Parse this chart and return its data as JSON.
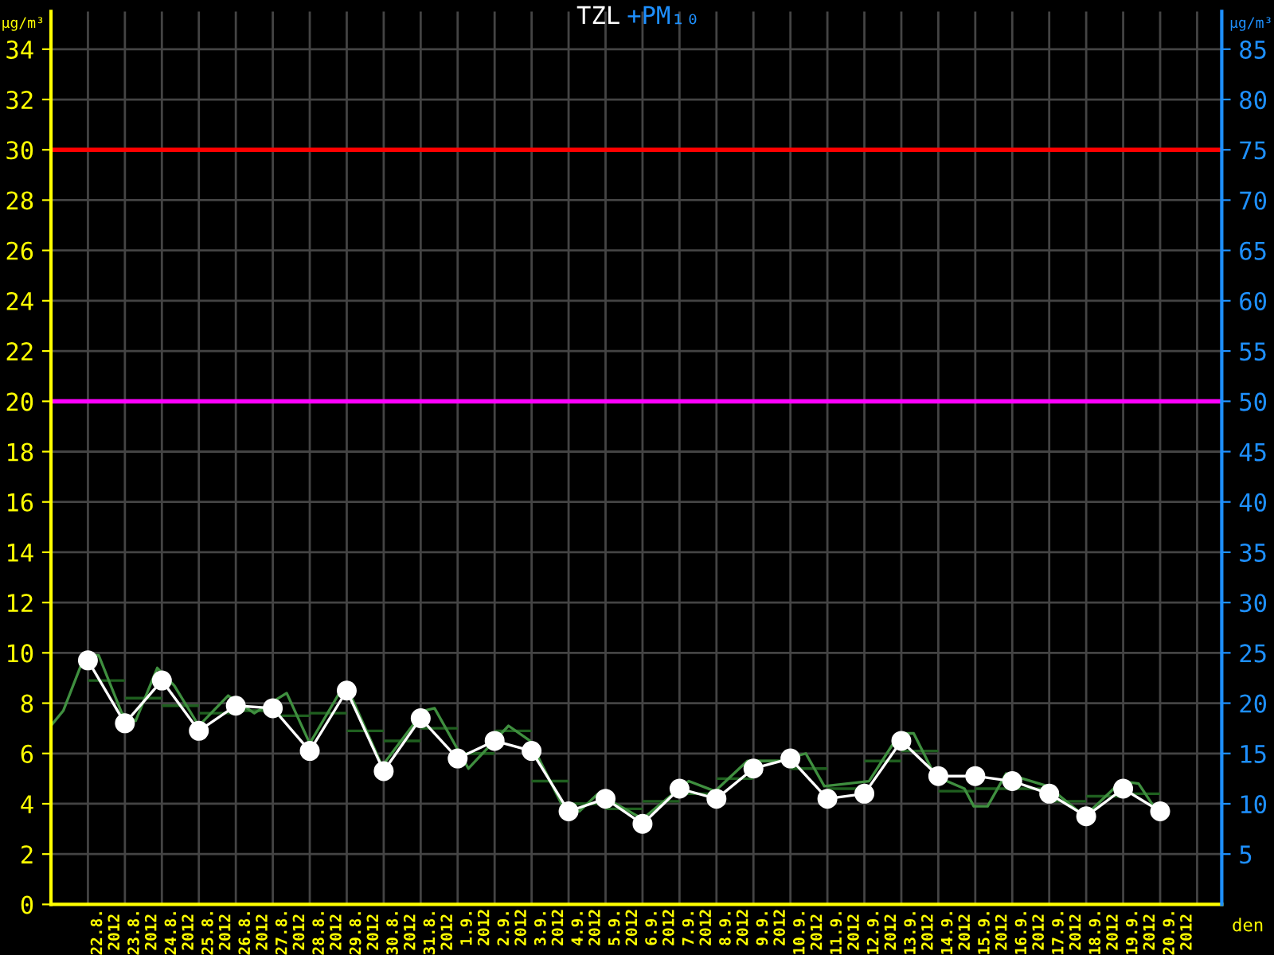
{
  "chart_data": {
    "type": "line",
    "title": "TZL",
    "subtitle": "+PM₁₀",
    "xlabel": "den",
    "ylabel": "µg/m³",
    "y2label": "µg/m³",
    "xlim": [
      "2012-08-21",
      "2012-09-21T16:00"
    ],
    "ylim": [
      0,
      35.5
    ],
    "y2lim": [
      0,
      88.75
    ],
    "yticks": [
      0,
      2,
      4,
      6,
      8,
      10,
      12,
      14,
      16,
      18,
      20,
      22,
      24,
      26,
      28,
      30,
      32,
      34
    ],
    "y2ticks": [
      5,
      10,
      15,
      20,
      25,
      30,
      35,
      40,
      45,
      50,
      55,
      60,
      65,
      70,
      75,
      80,
      85
    ],
    "xticks": [
      {
        "value": "2012-08-22",
        "label": null
      },
      {
        "value": "2012-08-23",
        "label": null
      },
      {
        "value": "2012-08-24",
        "label": null
      },
      {
        "value": "2012-08-25",
        "label": null
      },
      {
        "value": "2012-08-26",
        "label": null
      },
      {
        "value": "2012-08-27",
        "label": null
      },
      {
        "value": "2012-08-28",
        "label": null
      },
      {
        "value": "2012-08-29",
        "label": null
      },
      {
        "value": "2012-08-30",
        "label": null
      },
      {
        "value": "2012-08-31",
        "label": null
      },
      {
        "value": "2012-09-01",
        "label": null
      },
      {
        "value": "2012-09-02",
        "label": null
      },
      {
        "value": "2012-09-03",
        "label": null
      },
      {
        "value": "2012-09-04",
        "label": null
      },
      {
        "value": "2012-09-05",
        "label": null
      },
      {
        "value": "2012-09-06",
        "label": null
      },
      {
        "value": "2012-09-07",
        "label": null
      },
      {
        "value": "2012-09-08",
        "label": null
      },
      {
        "value": "2012-09-09",
        "label": null
      },
      {
        "value": "2012-09-10",
        "label": null
      },
      {
        "value": "2012-09-11",
        "label": null
      },
      {
        "value": "2012-09-12",
        "label": null
      },
      {
        "value": "2012-09-13",
        "label": null
      },
      {
        "value": "2012-09-14",
        "label": null
      },
      {
        "value": "2012-09-15",
        "label": null
      },
      {
        "value": "2012-09-16",
        "label": null
      },
      {
        "value": "2012-09-17",
        "label": null
      },
      {
        "value": "2012-09-18",
        "label": null
      },
      {
        "value": "2012-09-19",
        "label": null
      },
      {
        "value": "2012-09-20",
        "label": null
      },
      {
        "value": "2012-09-21",
        "label": null
      },
      {
        "value": "2012-08-22T12:00",
        "label": "22.8.\n2012"
      },
      {
        "value": "2012-08-23T12:00",
        "label": "23.8.\n2012"
      },
      {
        "value": "2012-08-24T12:00",
        "label": "24.8.\n2012"
      },
      {
        "value": "2012-08-25T12:00",
        "label": "25.8.\n2012"
      },
      {
        "value": "2012-08-26T12:00",
        "label": "26.8.\n2012"
      },
      {
        "value": "2012-08-27T12:00",
        "label": "27.8.\n2012"
      },
      {
        "value": "2012-08-28T12:00",
        "label": "28.8.\n2012"
      },
      {
        "value": "2012-08-29T12:00",
        "label": "29.8.\n2012"
      },
      {
        "value": "2012-08-30T12:00",
        "label": "30.8.\n2012"
      },
      {
        "value": "2012-08-31T12:00",
        "label": "31.8.\n2012"
      },
      {
        "value": "2012-09-01T12:00",
        "label": "1.9.\n2012"
      },
      {
        "value": "2012-09-02T12:00",
        "label": "2.9.\n2012"
      },
      {
        "value": "2012-09-03T12:00",
        "label": "3.9.\n2012"
      },
      {
        "value": "2012-09-04T12:00",
        "label": "4.9.\n2012"
      },
      {
        "value": "2012-09-05T12:00",
        "label": "5.9.\n2012"
      },
      {
        "value": "2012-09-06T12:00",
        "label": "6.9.\n2012"
      },
      {
        "value": "2012-09-07T12:00",
        "label": "7.9.\n2012"
      },
      {
        "value": "2012-09-08T12:00",
        "label": "8.9.\n2012"
      },
      {
        "value": "2012-09-09T12:00",
        "label": "9.9.\n2012"
      },
      {
        "value": "2012-09-10T12:00",
        "label": "10.9.\n2012"
      },
      {
        "value": "2012-09-11T12:00",
        "label": "11.9.\n2012"
      },
      {
        "value": "2012-09-12T12:00",
        "label": "12.9.\n2012"
      },
      {
        "value": "2012-09-13T12:00",
        "label": "13.9.\n2012"
      },
      {
        "value": "2012-09-14T12:00",
        "label": "14.9.\n2012"
      },
      {
        "value": "2012-09-15T12:00",
        "label": "15.9.\n2012"
      },
      {
        "value": "2012-09-16T12:00",
        "label": "16.9.\n2012"
      },
      {
        "value": "2012-09-17T12:00",
        "label": "17.9.\n2012"
      },
      {
        "value": "2012-09-18T12:00",
        "label": "18.9.\n2012"
      },
      {
        "value": "2012-09-19T12:00",
        "label": "19.9.\n2012"
      },
      {
        "value": "2012-09-20T12:00",
        "label": "20.9.\n2012"
      }
    ],
    "grid": true,
    "ref_lines": [
      {
        "axis": "y",
        "value": 30,
        "color": "#ff0000"
      },
      {
        "axis": "y",
        "value": 20,
        "color": "#ff00ff"
      }
    ],
    "series": [
      {
        "type": "step",
        "color": "#1f5f1f",
        "x": [
          "2012-08-22",
          "2012-08-23",
          "2012-08-24",
          "2012-08-25",
          "2012-08-26",
          "2012-08-27",
          "2012-08-28",
          "2012-08-29",
          "2012-08-30",
          "2012-08-31",
          "2012-09-01",
          "2012-09-02",
          "2012-09-03",
          "2012-09-04",
          "2012-09-05",
          "2012-09-06",
          "2012-09-07",
          "2012-09-08",
          "2012-09-09",
          "2012-09-10",
          "2012-09-11",
          "2012-09-12",
          "2012-09-13",
          "2012-09-14",
          "2012-09-15",
          "2012-09-16",
          "2012-09-17",
          "2012-09-18",
          "2012-09-19",
          "2012-09-20"
        ],
        "values": [
          8.9,
          8.2,
          7.9,
          7.6,
          7.7,
          7.5,
          7.6,
          6.9,
          6.5,
          7.0,
          6.0,
          6.9,
          4.9,
          4.0,
          3.8,
          4.1,
          4.4,
          5.0,
          5.7,
          5.4,
          4.6,
          5.7,
          6.1,
          4.5,
          4.6,
          4.6,
          4.1,
          4.3,
          4.4,
          4.4
        ]
      },
      {
        "type": "line",
        "color": "#3f8f3f",
        "marker": "none",
        "x": [
          "2012-08-21T00:00",
          "2012-08-21T08:00",
          "2012-08-21T22:00",
          "2012-08-22T07:00",
          "2012-08-22T22:00",
          "2012-08-23T07:00",
          "2012-08-23T21:00",
          "2012-08-24T08:00",
          "2012-08-25T00:00",
          "2012-08-25T19:00",
          "2012-08-26T12:00",
          "2012-08-27T09:00",
          "2012-08-28T00:00",
          "2012-08-28T23:00",
          "2012-08-29T23:00",
          "2012-08-31T02:00",
          "2012-08-31T09:00",
          "2012-09-01T07:00",
          "2012-09-02T09:00",
          "2012-09-02T23:00",
          "2012-09-03T21:00",
          "2012-09-04T07:00",
          "2012-09-04T19:00",
          "2012-09-06T00:00",
          "2012-09-06T10:00",
          "2012-09-07T06:00",
          "2012-09-07T23:00",
          "2012-09-08T20:00",
          "2012-09-09T17:00",
          "2012-09-10T10:00",
          "2012-09-10T22:00",
          "2012-09-12T03:00",
          "2012-09-12T23:00",
          "2012-09-13T08:00",
          "2012-09-13T22:00",
          "2012-09-14T17:00",
          "2012-09-14T23:00",
          "2012-09-15T08:00",
          "2012-09-15T20:00",
          "2012-09-16T23:00",
          "2012-09-17T23:00",
          "2012-09-18T23:00",
          "2012-09-19T10:00",
          "2012-09-19T23:00"
        ],
        "values": [
          7.1,
          7.7,
          9.9,
          9.9,
          7.6,
          7.3,
          9.4,
          8.7,
          7.1,
          8.3,
          7.6,
          8.4,
          6.4,
          8.8,
          5.5,
          7.7,
          7.8,
          5.4,
          7.1,
          6.5,
          3.8,
          3.7,
          4.4,
          3.4,
          3.9,
          4.9,
          4.5,
          5.7,
          5.7,
          6.0,
          4.7,
          4.9,
          6.8,
          6.8,
          5.1,
          4.6,
          3.9,
          3.9,
          5.2,
          4.7,
          3.5,
          4.9,
          4.8,
          3.6
        ]
      },
      {
        "color": "#ffffff",
        "marker": "circle",
        "x": [
          "2012-08-22",
          "2012-08-23",
          "2012-08-24",
          "2012-08-25",
          "2012-08-26",
          "2012-08-27",
          "2012-08-28",
          "2012-08-29",
          "2012-08-30",
          "2012-08-31",
          "2012-09-01",
          "2012-09-02",
          "2012-09-03",
          "2012-09-04",
          "2012-09-05",
          "2012-09-06",
          "2012-09-07",
          "2012-09-08",
          "2012-09-09",
          "2012-09-10",
          "2012-09-11",
          "2012-09-12",
          "2012-09-13",
          "2012-09-14",
          "2012-09-15",
          "2012-09-16",
          "2012-09-17",
          "2012-09-18",
          "2012-09-19",
          "2012-09-20"
        ],
        "values": [
          9.7,
          7.2,
          8.9,
          6.9,
          7.9,
          7.8,
          6.1,
          8.5,
          5.3,
          7.4,
          5.8,
          6.5,
          6.1,
          3.7,
          4.2,
          3.2,
          4.6,
          4.2,
          5.4,
          5.8,
          4.2,
          4.4,
          6.5,
          5.1,
          5.1,
          4.9,
          4.4,
          3.5,
          4.6,
          3.7
        ]
      }
    ]
  }
}
